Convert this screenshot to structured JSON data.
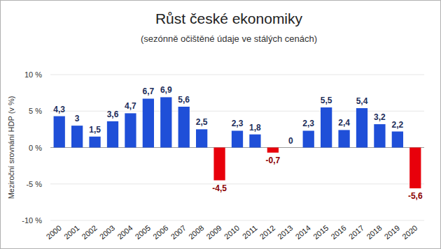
{
  "chart_data": {
    "type": "bar",
    "title": "Růst české ekonomiky",
    "subtitle": "(sezónně očištěné údaje ve stálých cenách)",
    "ylabel": "Meziroční srovnání HDP (v %)",
    "categories": [
      "2000",
      "2001",
      "2002",
      "2003",
      "2004",
      "2005",
      "2006",
      "2007",
      "2008",
      "2009",
      "2010",
      "2011",
      "2012",
      "2013",
      "2014",
      "2015",
      "2016",
      "2017",
      "2018",
      "2019",
      "2020"
    ],
    "values": [
      4.3,
      3,
      1.5,
      3.6,
      4.7,
      6.7,
      6.9,
      5.6,
      2.5,
      -4.5,
      2.3,
      1.8,
      -0.7,
      0,
      2.3,
      5.5,
      2.4,
      5.4,
      3.2,
      2.2,
      -5.6
    ],
    "value_labels": [
      "4,3",
      "3",
      "1,5",
      "3,6",
      "4,7",
      "6,7",
      "6,9",
      "5,6",
      "2,5",
      "-4,5",
      "2,3",
      "1,8",
      "-0,7",
      "0",
      "2,3",
      "5,5",
      "2,4",
      "5,4",
      "3,2",
      "2,2",
      "-5,6"
    ],
    "colors": [
      "#1f4fd8",
      "#1f4fd8",
      "#1f4fd8",
      "#1f4fd8",
      "#1f4fd8",
      "#1f4fd8",
      "#1f4fd8",
      "#1f4fd8",
      "#1f4fd8",
      "#e8000b",
      "#1f4fd8",
      "#1f4fd8",
      "#e8000b",
      "#1f4fd8",
      "#1f4fd8",
      "#1f4fd8",
      "#1f4fd8",
      "#1f4fd8",
      "#1f4fd8",
      "#1f4fd8",
      "#e8000b"
    ],
    "ylim": [
      -10,
      10
    ],
    "yticks": [
      {
        "value": -10,
        "label": "-10 %"
      },
      {
        "value": -5,
        "label": "-5 %"
      },
      {
        "value": 0,
        "label": "0 %"
      },
      {
        "value": 5,
        "label": "5 %"
      },
      {
        "value": 10,
        "label": "10 %"
      }
    ],
    "grid": true,
    "data_labels": true
  }
}
